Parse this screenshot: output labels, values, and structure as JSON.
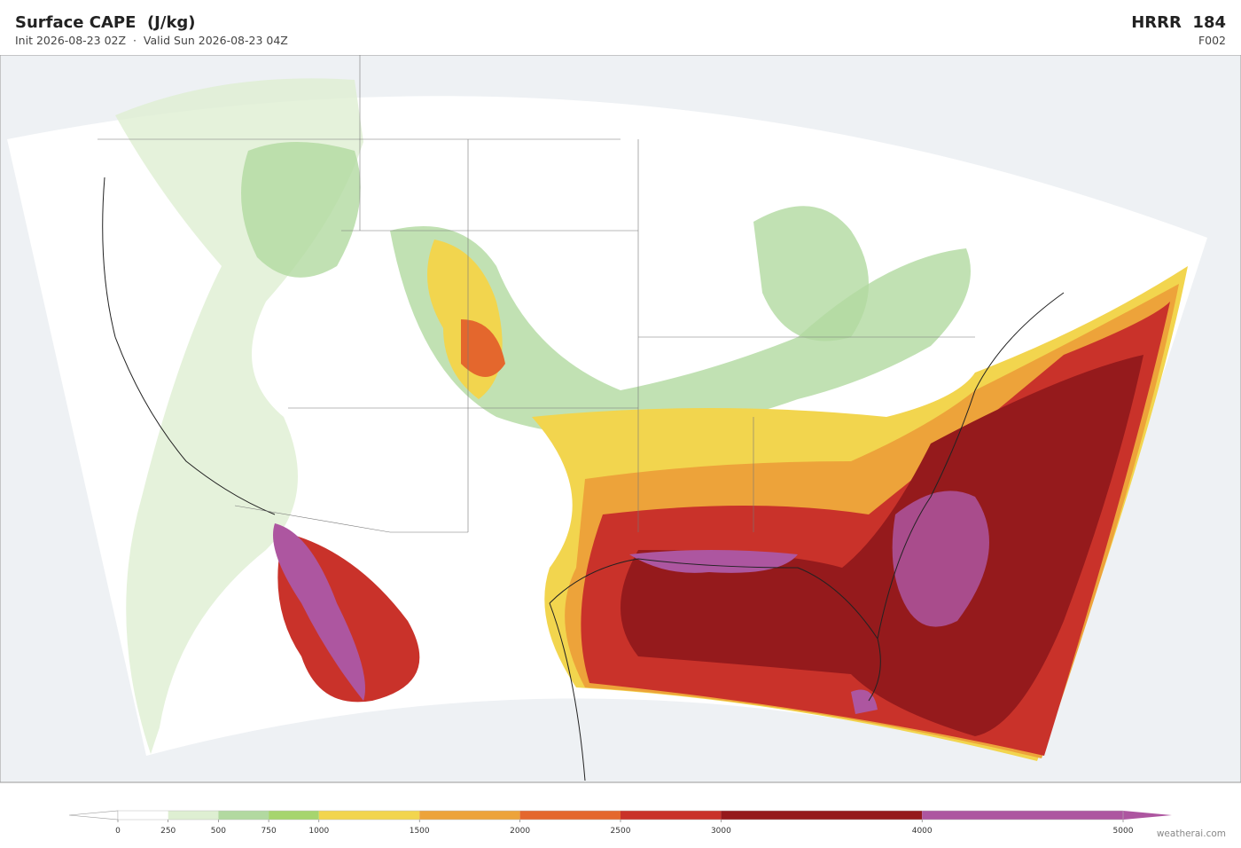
{
  "header": {
    "title": "Surface CAPE  (J/kg)",
    "subtitle": "Init 2026-08-23 02Z  ·  Valid Sun 2026-08-23 04Z",
    "model": "HRRR  184",
    "frame": "F002"
  },
  "colorbar": {
    "xlim": [
      0,
      5000
    ],
    "ticks": [
      0,
      250,
      500,
      750,
      1000,
      1500,
      2000,
      2500,
      3000,
      4000,
      5000
    ],
    "colors": [
      "#ffffff",
      "#deefd2",
      "#b2d9a0",
      "#a6d56e",
      "#f2d54e",
      "#eda33a",
      "#e4672d",
      "#c9322a",
      "#951a1c",
      "#ad56a0"
    ],
    "under_color": "#ffffff",
    "over_color": "#ad56a0"
  },
  "credit": "weatherai.com"
}
